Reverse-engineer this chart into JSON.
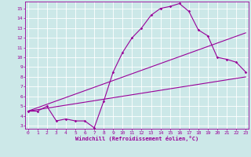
{
  "xlabel": "Windchill (Refroidissement éolien,°C)",
  "bg_color": "#cce8e8",
  "grid_color": "#ffffff",
  "line_color": "#990099",
  "x_ticks": [
    0,
    1,
    2,
    3,
    4,
    5,
    6,
    7,
    8,
    9,
    10,
    11,
    12,
    13,
    14,
    15,
    16,
    17,
    18,
    19,
    20,
    21,
    22,
    23
  ],
  "y_ticks": [
    3,
    4,
    5,
    6,
    7,
    8,
    9,
    10,
    11,
    12,
    13,
    14,
    15
  ],
  "ylim": [
    2.7,
    15.7
  ],
  "xlim": [
    -0.3,
    23.3
  ],
  "line1_x": [
    0,
    1,
    2,
    3,
    4,
    5,
    6,
    7,
    8,
    9,
    10,
    11,
    12,
    13,
    14,
    15,
    16,
    17,
    18,
    19,
    20,
    21,
    22,
    23
  ],
  "line1_y": [
    4.5,
    4.5,
    5.0,
    3.5,
    3.7,
    3.5,
    3.5,
    2.8,
    5.5,
    8.5,
    10.5,
    12.0,
    13.0,
    14.3,
    15.0,
    15.2,
    15.5,
    14.7,
    12.8,
    12.2,
    10.0,
    9.8,
    9.5,
    8.5
  ],
  "line2_x": [
    0,
    23
  ],
  "line2_y": [
    4.5,
    8.0
  ],
  "line3_x": [
    0,
    23
  ],
  "line3_y": [
    4.5,
    12.5
  ],
  "lw": 0.8,
  "markersize": 1.8,
  "tick_fontsize": 4.5,
  "xlabel_fontsize": 5.0
}
